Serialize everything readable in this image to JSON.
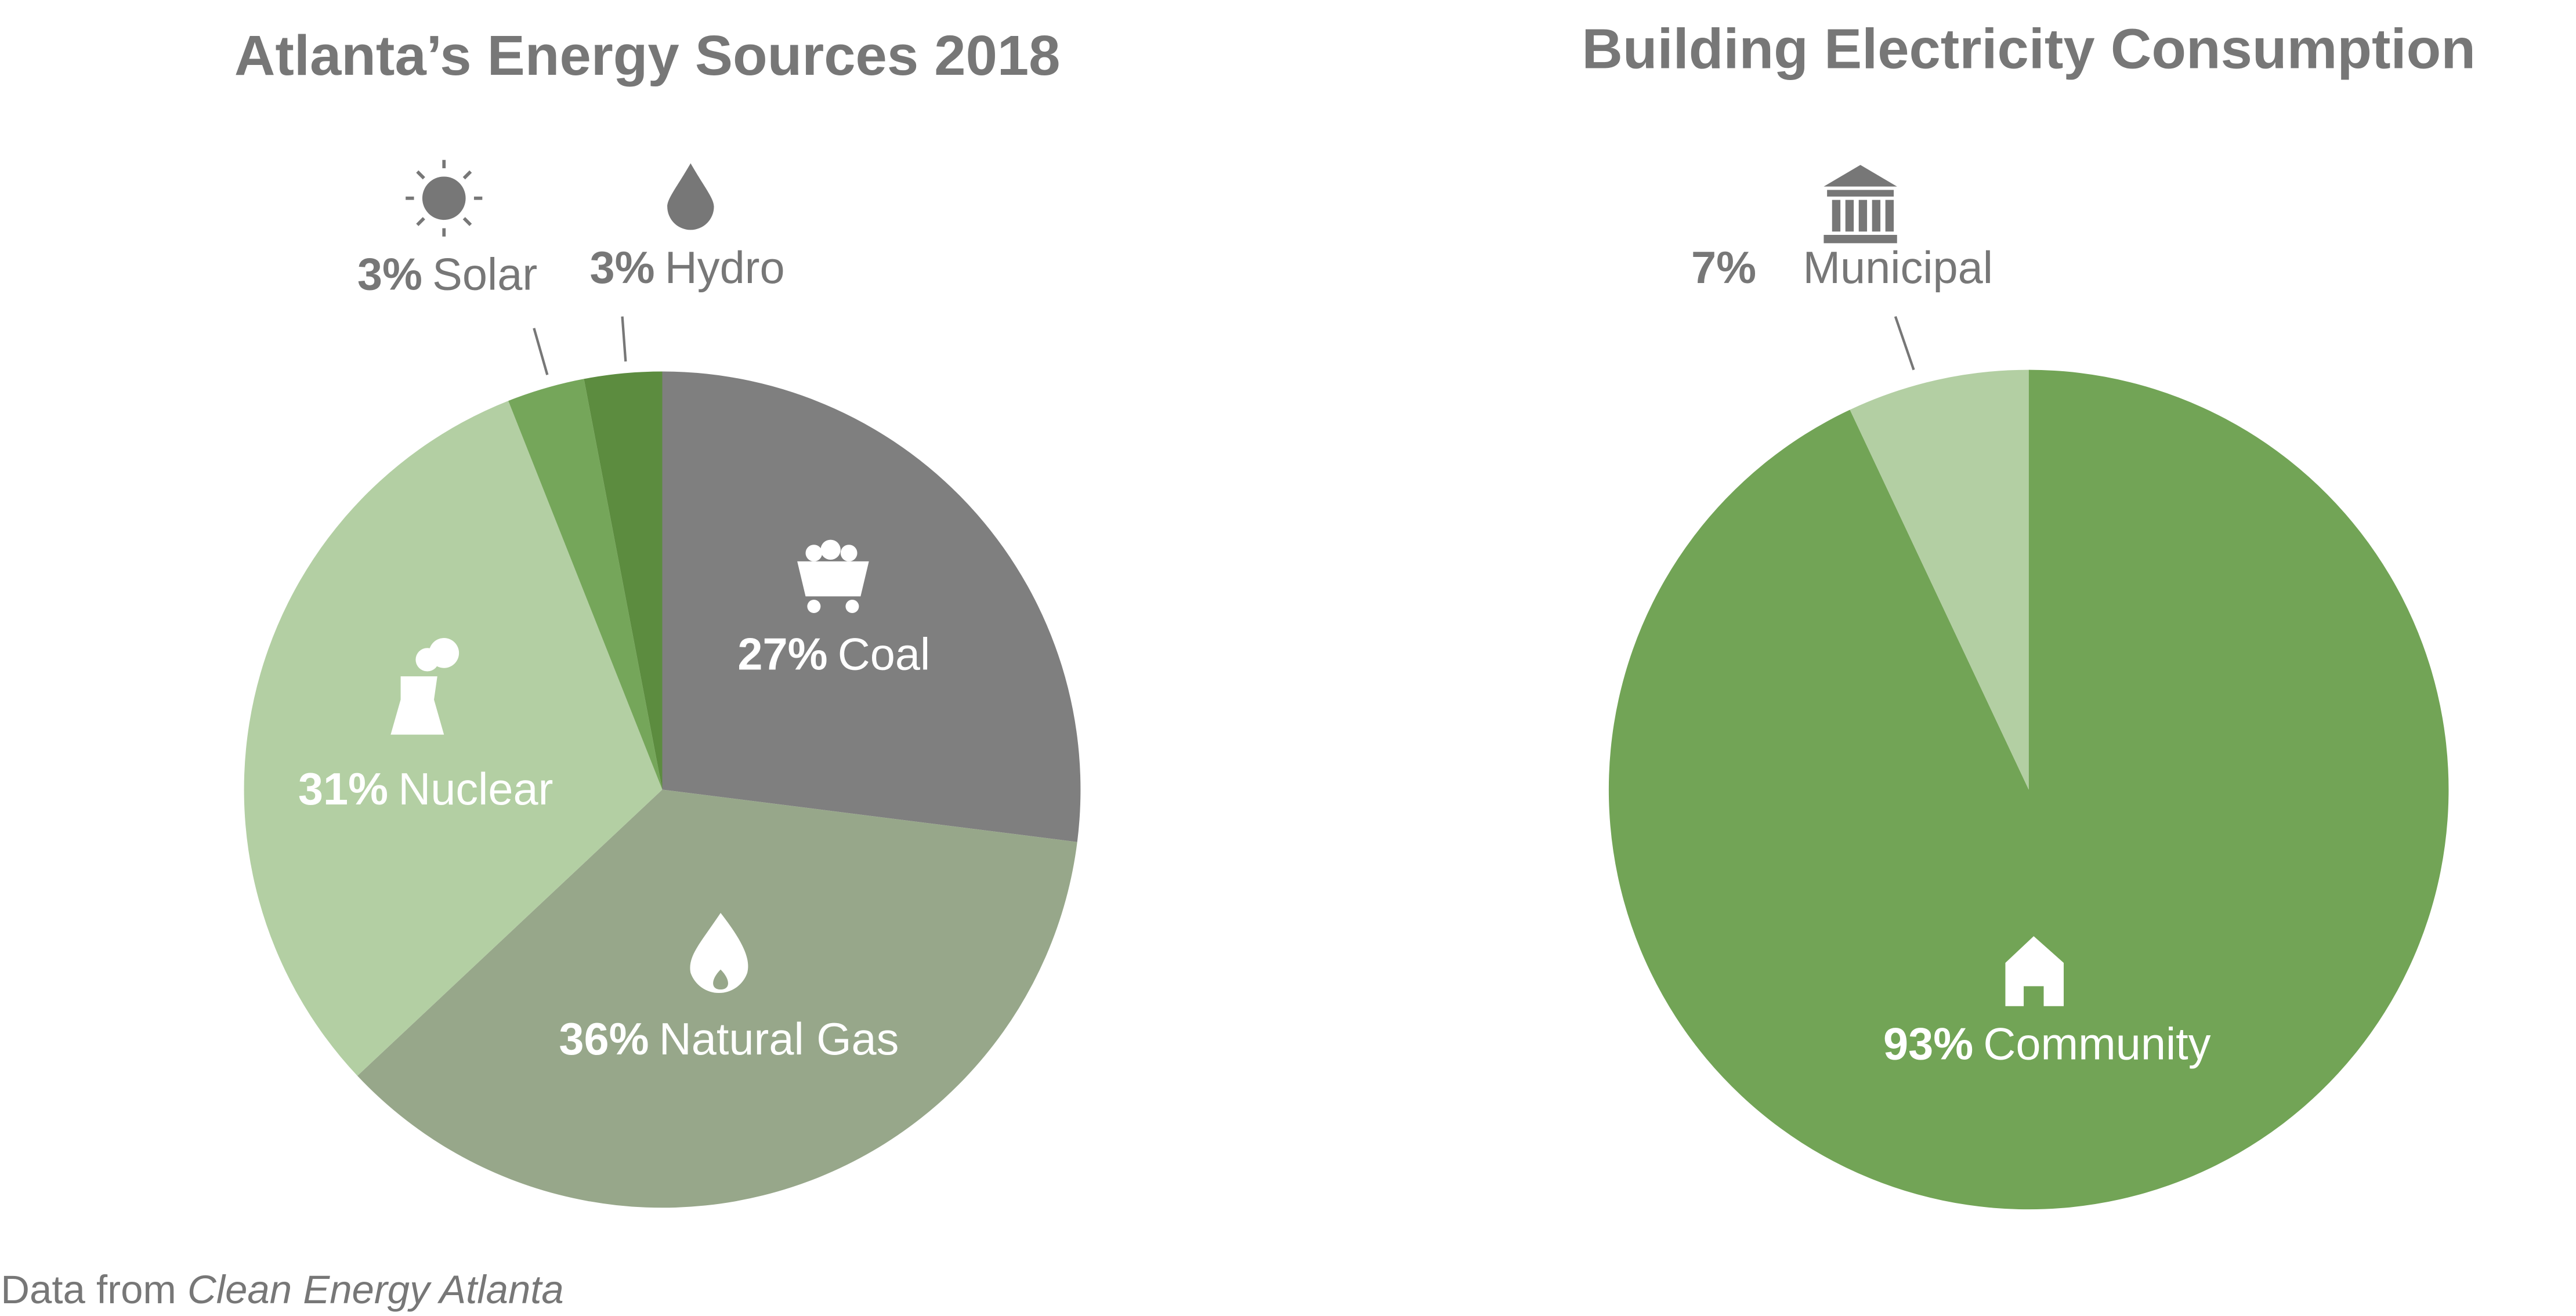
{
  "chart_data": [
    {
      "type": "pie",
      "title": "Atlanta’s Energy Sources 2018",
      "categories": [
        "Coal",
        "Natural Gas",
        "Nuclear",
        "Solar",
        "Hydro"
      ],
      "values": [
        27,
        36,
        31,
        3,
        3
      ],
      "value_labels": [
        "27%",
        "36%",
        "31%",
        "3%",
        "3%"
      ],
      "colors": [
        "#7f7f7f",
        "#97a78a",
        "#b3cfa3",
        "#75a65a",
        "#5c8c3f"
      ]
    },
    {
      "type": "pie",
      "title": "Building Electricity Consumption",
      "categories": [
        "Community",
        "Municipal"
      ],
      "values": [
        93,
        7
      ],
      "value_labels": [
        "93%",
        "7%"
      ],
      "colors": [
        "#72a456",
        "#b3cfa3"
      ]
    }
  ],
  "source": {
    "prefix": "Data from",
    "name": "Clean Energy Atlanta"
  }
}
